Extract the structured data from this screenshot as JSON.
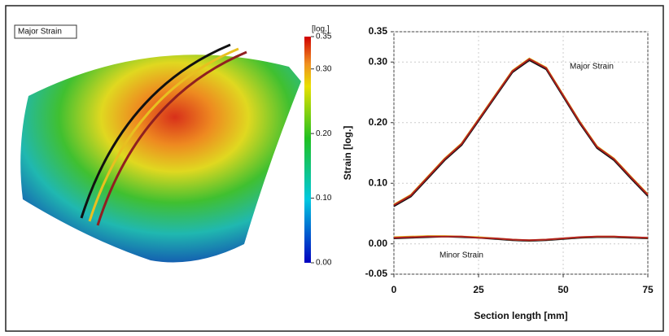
{
  "map": {
    "label": "Major Strain",
    "colorbar": {
      "unit": "[log.]",
      "lim": [
        0,
        0.35
      ],
      "ticks": [
        0.35,
        {
          "value": 0.3,
          "label": "0.30"
        },
        {
          "value": 0.2,
          "label": "0.20"
        },
        {
          "value": 0.1,
          "label": "0.10"
        },
        {
          "value": 0,
          "label": "0.00"
        }
      ]
    }
  },
  "chart_data": {
    "type": "line",
    "xlabel": "Section length [mm]",
    "ylabel": "Strain [log.]",
    "annotations": [
      "Major Strain",
      "Minor Strain"
    ],
    "x": [
      0,
      5,
      10,
      15,
      20,
      25,
      30,
      35,
      40,
      45,
      50,
      55,
      60,
      65,
      70,
      75
    ],
    "series": [
      {
        "color": "#111111",
        "values": [
          0.062,
          0.078,
          0.108,
          0.138,
          0.163,
          0.203,
          0.243,
          0.283,
          0.303,
          0.288,
          0.243,
          0.198,
          0.158,
          0.138,
          0.108,
          0.079
        ]
      },
      {
        "color": "#e8c020",
        "values": [
          0.065,
          0.081,
          0.111,
          0.141,
          0.166,
          0.206,
          0.246,
          0.286,
          0.306,
          0.291,
          0.246,
          0.201,
          0.161,
          0.141,
          0.111,
          0.082
        ]
      },
      {
        "color": "#b02020",
        "values": [
          0.064,
          0.08,
          0.11,
          0.14,
          0.165,
          0.205,
          0.245,
          0.285,
          0.305,
          0.29,
          0.245,
          0.2,
          0.16,
          0.14,
          0.11,
          0.081
        ]
      },
      {
        "color": "#111111",
        "values": [
          0.009,
          0.01,
          0.011,
          0.012,
          0.011,
          0.01,
          0.008,
          0.006,
          0.005,
          0.006,
          0.008,
          0.01,
          0.011,
          0.011,
          0.01,
          0.009
        ]
      },
      {
        "color": "#e8c020",
        "values": [
          0.011,
          0.012,
          0.013,
          0.013,
          0.012,
          0.011,
          0.009,
          0.007,
          0.006,
          0.007,
          0.009,
          0.011,
          0.012,
          0.012,
          0.011,
          0.01
        ]
      },
      {
        "color": "#b02020",
        "values": [
          0.01,
          0.011,
          0.012,
          0.012,
          0.012,
          0.01,
          0.009,
          0.007,
          0.006,
          0.007,
          0.009,
          0.011,
          0.012,
          0.012,
          0.011,
          0.01
        ]
      }
    ],
    "xlim": [
      0,
      75
    ],
    "ylim": [
      -0.05,
      0.35
    ],
    "xticks": [
      0,
      25,
      50,
      75
    ],
    "yticks": [
      0.35,
      {
        "value": 0.3,
        "label": "0.30"
      },
      {
        "value": 0.2,
        "label": "0.20"
      },
      {
        "value": 0.1,
        "label": "0.10"
      },
      {
        "value": 0,
        "label": "0.00"
      },
      -0.05
    ],
    "grid": true
  }
}
